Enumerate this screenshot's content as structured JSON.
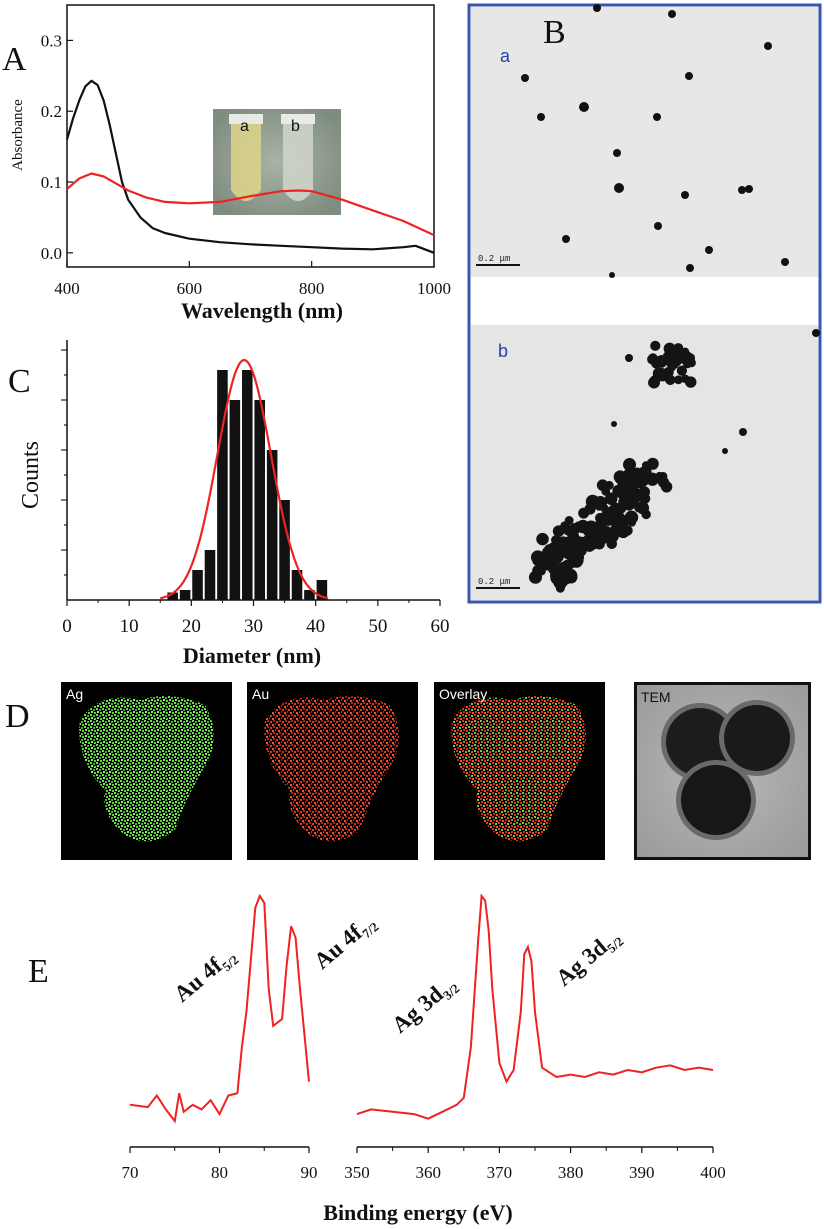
{
  "panels": {
    "A": "A",
    "B": "B",
    "C": "C",
    "D": "D",
    "E": "E"
  },
  "colors": {
    "black_curve": "#111111",
    "red_curve": "#ee2222",
    "tem_frame": "#3a55b0",
    "ag_map": "#5cd63a",
    "au_map": "#e8321e"
  },
  "chart_data": [
    {
      "id": "A",
      "type": "line",
      "xlabel": "Wavelength (nm)",
      "ylabel": "Absorbance",
      "xlim": [
        400,
        1000
      ],
      "ylim": [
        -0.02,
        0.35
      ],
      "xticks": [
        "400",
        "600",
        "800",
        "1000"
      ],
      "yticks": [
        "0.0",
        "0.1",
        "0.2",
        "0.3"
      ],
      "inset_labels": [
        "a",
        "b"
      ],
      "series": [
        {
          "color": "black",
          "x": [
            400,
            410,
            420,
            430,
            440,
            450,
            460,
            470,
            480,
            490,
            500,
            520,
            540,
            560,
            600,
            650,
            700,
            750,
            800,
            850,
            900,
            950,
            970,
            1000
          ],
          "y": [
            0.16,
            0.19,
            0.215,
            0.235,
            0.243,
            0.237,
            0.215,
            0.18,
            0.14,
            0.1,
            0.075,
            0.05,
            0.035,
            0.028,
            0.02,
            0.015,
            0.012,
            0.01,
            0.008,
            0.006,
            0.005,
            0.008,
            0.01,
            0.0
          ]
        },
        {
          "color": "red",
          "x": [
            400,
            420,
            440,
            460,
            480,
            500,
            530,
            560,
            600,
            650,
            700,
            750,
            780,
            800,
            850,
            900,
            950,
            1000
          ],
          "y": [
            0.09,
            0.105,
            0.112,
            0.108,
            0.098,
            0.088,
            0.078,
            0.072,
            0.07,
            0.072,
            0.08,
            0.087,
            0.088,
            0.087,
            0.075,
            0.06,
            0.045,
            0.025
          ]
        }
      ]
    },
    {
      "id": "C",
      "type": "bar",
      "xlabel": "Diameter (nm)",
      "ylabel": "Counts",
      "xlim": [
        0,
        60
      ],
      "ylim": [
        0,
        5.2
      ],
      "xticks": [
        "0",
        "10",
        "20",
        "30",
        "40",
        "50",
        "60"
      ],
      "bins": [
        {
          "x": 17,
          "count": 0.15
        },
        {
          "x": 19,
          "count": 0.2
        },
        {
          "x": 21,
          "count": 0.6
        },
        {
          "x": 23,
          "count": 1.0
        },
        {
          "x": 25,
          "count": 4.6
        },
        {
          "x": 27,
          "count": 4.0
        },
        {
          "x": 29,
          "count": 4.6
        },
        {
          "x": 31,
          "count": 4.0
        },
        {
          "x": 33,
          "count": 3.0
        },
        {
          "x": 35,
          "count": 2.0
        },
        {
          "x": 37,
          "count": 0.6
        },
        {
          "x": 39,
          "count": 0.2
        },
        {
          "x": 41,
          "count": 0.4
        }
      ],
      "bin_width": 2,
      "fit": {
        "type": "gaussian",
        "center": 28.5,
        "amplitude": 4.8,
        "sigma": 4.3
      }
    },
    {
      "id": "E",
      "type": "line",
      "xlabel": "Binding energy (eV)",
      "segments": [
        {
          "name": "Au",
          "xlim": [
            70,
            90
          ],
          "xticks": [
            "70",
            "80",
            "90"
          ],
          "x": [
            70,
            72,
            73,
            74,
            75,
            75.5,
            76,
            77,
            78,
            79,
            80,
            81,
            82,
            82.5,
            83,
            84,
            84.5,
            85,
            85.5,
            86,
            87,
            87.5,
            88,
            88.5,
            89,
            89.5,
            90
          ],
          "y": [
            0.1,
            0.09,
            0.14,
            0.08,
            0.03,
            0.15,
            0.07,
            0.1,
            0.08,
            0.12,
            0.06,
            0.14,
            0.15,
            0.35,
            0.5,
            0.95,
            1.0,
            0.97,
            0.6,
            0.44,
            0.47,
            0.7,
            0.87,
            0.82,
            0.6,
            0.4,
            0.2
          ],
          "labels": [
            {
              "main": "Au 4f",
              "sub": "5/2"
            },
            {
              "main": "Au 4f",
              "sub": "7/2"
            }
          ]
        },
        {
          "name": "Ag",
          "xlim": [
            350,
            400
          ],
          "xticks": [
            "350",
            "360",
            "370",
            "380",
            "390",
            "400"
          ],
          "x": [
            350,
            352,
            355,
            358,
            360,
            362,
            364,
            365,
            366,
            367,
            367.5,
            368,
            368.5,
            369,
            370,
            371,
            372,
            373,
            373.5,
            374,
            374.5,
            375,
            376,
            377,
            378,
            380,
            382,
            384,
            386,
            388,
            390,
            392,
            394,
            396,
            398,
            400
          ],
          "y": [
            0.06,
            0.08,
            0.07,
            0.06,
            0.04,
            0.07,
            0.1,
            0.13,
            0.35,
            0.8,
            1.0,
            0.98,
            0.85,
            0.6,
            0.28,
            0.2,
            0.25,
            0.5,
            0.75,
            0.78,
            0.72,
            0.5,
            0.26,
            0.24,
            0.22,
            0.23,
            0.22,
            0.24,
            0.23,
            0.25,
            0.24,
            0.26,
            0.27,
            0.25,
            0.26,
            0.25
          ],
          "labels": [
            {
              "main": "Ag 3d",
              "sub": "3/2"
            },
            {
              "main": "Ag 3d",
              "sub": "5/2"
            }
          ]
        }
      ]
    }
  ],
  "panel_B": {
    "image_labels": [
      "a",
      "b"
    ],
    "scale_bars": [
      "0.2 μm",
      "0.2 μm"
    ]
  },
  "panel_D": {
    "maps": [
      "Ag",
      "Au",
      "Overlay",
      "TEM"
    ]
  }
}
